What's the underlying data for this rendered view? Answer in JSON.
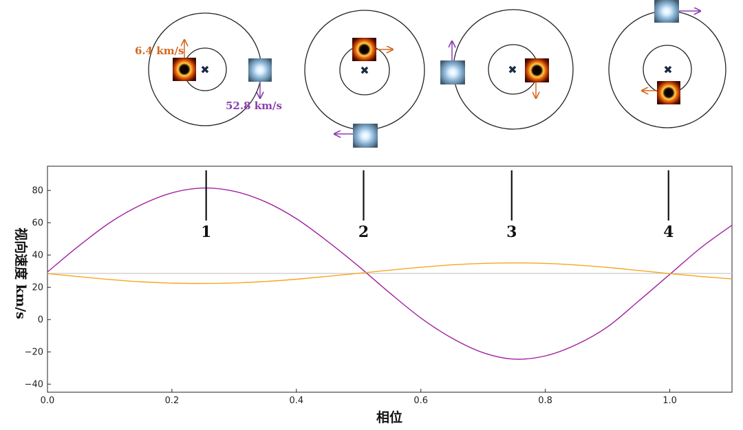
{
  "chart_data": {
    "type": "line",
    "xlabel": "相位",
    "ylabel": "视向速度 km/s",
    "xlim": [
      0,
      1.1
    ],
    "ylim": [
      -45,
      95
    ],
    "xticks": [
      "0.0",
      "0.2",
      "0.4",
      "0.6",
      "0.8",
      "1.0"
    ],
    "yticks": [
      "−40",
      "−20",
      "0",
      "20",
      "40",
      "60",
      "80"
    ],
    "systemic_velocity": 28.6,
    "series": [
      {
        "color": "#a020a0",
        "x": [
          0.0,
          0.05,
          0.1,
          0.15,
          0.2,
          0.25,
          0.3,
          0.35,
          0.4,
          0.45,
          0.5,
          0.55,
          0.6,
          0.65,
          0.7,
          0.75,
          0.8,
          0.85,
          0.9,
          0.95,
          1.0,
          1.05,
          1.1
        ],
        "values": [
          29.5,
          45.5,
          60,
          71,
          78.5,
          81.5,
          79.5,
          73,
          62.5,
          48.5,
          33,
          16.5,
          1,
          -11.5,
          -20.5,
          -24.5,
          -22.5,
          -15.5,
          -4.5,
          11.5,
          28,
          44.5,
          58.5
        ]
      },
      {
        "color": "#f5a623",
        "x": [
          0.0,
          0.05,
          0.1,
          0.15,
          0.2,
          0.25,
          0.3,
          0.35,
          0.4,
          0.45,
          0.5,
          0.55,
          0.6,
          0.65,
          0.7,
          0.75,
          0.8,
          0.85,
          0.9,
          0.95,
          1.0,
          1.05,
          1.1
        ],
        "values": [
          28.5,
          26.6,
          24.8,
          23.4,
          22.6,
          22.4,
          22.7,
          23.6,
          25,
          26.8,
          28.7,
          30.6,
          32.4,
          33.9,
          34.8,
          35.1,
          34.8,
          33.8,
          32.3,
          30.4,
          28.5,
          26.7,
          25.2
        ]
      }
    ],
    "phase_markers": [
      {
        "label": "1",
        "x": 0.255
      },
      {
        "label": "2",
        "x": 0.508
      },
      {
        "label": "3",
        "x": 0.746
      },
      {
        "label": "4",
        "x": 0.998
      }
    ],
    "annotations": {
      "orange_speed": "6.4 km/s",
      "purple_speed": "52.8 km/s"
    }
  },
  "colors": {
    "purple": "#a020a0",
    "orange": "#f5a623",
    "orbit": "#222222",
    "systemic_line": "#cfcfcf",
    "orange_arrow": "#d2691e",
    "purple_arrow": "#8a3fb0"
  },
  "icons": {
    "center_of_mass": "cross-icon",
    "orange_star": "black-hole-orange-icon",
    "blue_star": "blue-star-icon"
  }
}
